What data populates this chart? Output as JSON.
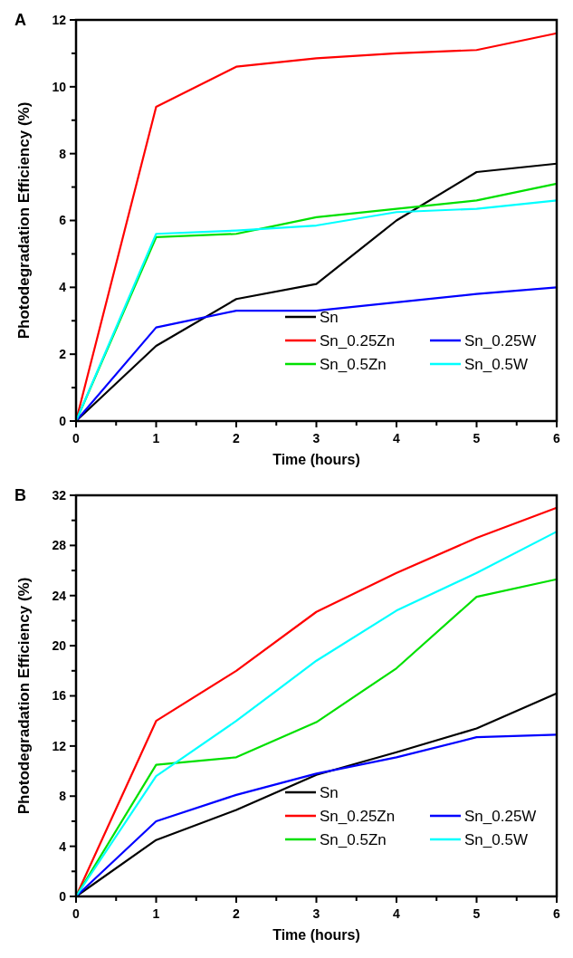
{
  "chart_data": [
    {
      "type": "line",
      "title": "A",
      "xlabel": "Time (hours)",
      "ylabel": "Photodegradation Efficiency (%)",
      "x": [
        0,
        1,
        2,
        3,
        4,
        5,
        6
      ],
      "xlim": [
        0,
        6
      ],
      "ylim": [
        0,
        12
      ],
      "xticks": [
        0,
        {
          "value": 0.5,
          "label": null
        },
        1,
        {
          "value": 1.5,
          "label": null
        },
        2,
        {
          "value": 2.5,
          "label": null
        },
        3,
        {
          "value": 3.5,
          "label": null
        },
        4,
        {
          "value": 4.5,
          "label": null
        },
        5,
        {
          "value": 5.5,
          "label": null
        },
        6
      ],
      "yticks": [
        0,
        {
          "value": 1,
          "label": null
        },
        2,
        {
          "value": 3,
          "label": null
        },
        4,
        {
          "value": 5,
          "label": null
        },
        6,
        {
          "value": 7,
          "label": null
        },
        8,
        {
          "value": 9,
          "label": null
        },
        10,
        {
          "value": 11,
          "label": null
        },
        12
      ],
      "legend": "bottom right",
      "grid": false,
      "marker": "none",
      "line_style": "solid",
      "series": [
        {
          "name": "Sn",
          "color": "#000000",
          "values": [
            0,
            2.25,
            3.65,
            4.1,
            6.0,
            7.45,
            7.7
          ]
        },
        {
          "name": "Sn_0.25Zn",
          "color": "#ff0000",
          "values": [
            0,
            9.4,
            10.6,
            10.85,
            11.0,
            11.1,
            11.6
          ]
        },
        {
          "name": "Sn_0.5Zn",
          "color": "#00e000",
          "values": [
            0,
            5.5,
            5.6,
            6.1,
            6.35,
            6.6,
            7.1
          ]
        },
        {
          "name": "Sn_0.25W",
          "color": "#0000ff",
          "values": [
            0,
            2.8,
            3.3,
            3.3,
            3.55,
            3.8,
            4.0
          ]
        },
        {
          "name": "Sn_0.5W",
          "color": "#00ffff",
          "values": [
            0,
            5.6,
            5.7,
            5.85,
            6.25,
            6.35,
            6.6
          ]
        }
      ]
    },
    {
      "type": "line",
      "title": "B",
      "xlabel": "Time (hours)",
      "ylabel": "Photodegradation Efficiency (%)",
      "x": [
        0,
        1,
        2,
        3,
        4,
        5,
        6
      ],
      "xlim": [
        0,
        6
      ],
      "ylim": [
        0,
        32
      ],
      "xticks": [
        0,
        {
          "value": 0.5,
          "label": null
        },
        1,
        {
          "value": 1.5,
          "label": null
        },
        2,
        {
          "value": 2.5,
          "label": null
        },
        3,
        {
          "value": 3.5,
          "label": null
        },
        4,
        {
          "value": 4.5,
          "label": null
        },
        5,
        {
          "value": 5.5,
          "label": null
        },
        6
      ],
      "yticks": [
        0,
        {
          "value": 2,
          "label": null
        },
        4,
        {
          "value": 6,
          "label": null
        },
        8,
        {
          "value": 10,
          "label": null
        },
        12,
        {
          "value": 14,
          "label": null
        },
        16,
        {
          "value": 18,
          "label": null
        },
        20,
        {
          "value": 22,
          "label": null
        },
        24,
        {
          "value": 26,
          "label": null
        },
        28,
        {
          "value": 30,
          "label": null
        },
        32
      ],
      "legend": "bottom right",
      "grid": false,
      "marker": "none",
      "line_style": "solid",
      "series": [
        {
          "name": "Sn",
          "color": "#000000",
          "values": [
            0,
            4.5,
            6.9,
            9.7,
            11.5,
            13.4,
            16.2
          ]
        },
        {
          "name": "Sn_0.25Zn",
          "color": "#ff0000",
          "values": [
            0,
            14.0,
            18.0,
            22.7,
            25.8,
            28.6,
            31.0
          ]
        },
        {
          "name": "Sn_0.5Zn",
          "color": "#00e000",
          "values": [
            0,
            10.5,
            11.1,
            13.9,
            18.2,
            23.9,
            25.3
          ]
        },
        {
          "name": "Sn_0.25W",
          "color": "#0000ff",
          "values": [
            0,
            6.0,
            8.1,
            9.8,
            11.1,
            12.7,
            12.9
          ]
        },
        {
          "name": "Sn_0.5W",
          "color": "#00ffff",
          "values": [
            0,
            9.6,
            14.0,
            18.8,
            22.8,
            25.8,
            29.1
          ]
        }
      ]
    }
  ]
}
